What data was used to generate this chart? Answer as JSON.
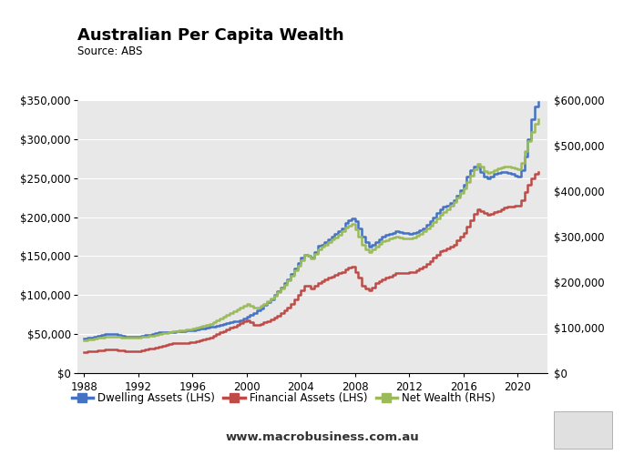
{
  "title": "Australian Per Capita Wealth",
  "source": "Source: ABS",
  "website": "www.macrobusiness.com.au",
  "figure_bg": "#ffffff",
  "plot_bg_color": "#e8e8e8",
  "lhs_ylim": [
    0,
    350000
  ],
  "rhs_ylim": [
    0,
    600000
  ],
  "lhs_yticks": [
    0,
    50000,
    100000,
    150000,
    200000,
    250000,
    300000,
    350000
  ],
  "rhs_yticks": [
    0,
    100000,
    200000,
    300000,
    400000,
    500000,
    600000
  ],
  "xlim": [
    1987.5,
    2022.2
  ],
  "xticks": [
    1988,
    1992,
    1996,
    2000,
    2004,
    2008,
    2012,
    2016,
    2020
  ],
  "dwelling_color": "#4472c4",
  "financial_color": "#be4b48",
  "netwealth_color": "#9bbb59",
  "macro_red": "#cc0000",
  "years": [
    1988.0,
    1988.25,
    1988.5,
    1988.75,
    1989.0,
    1989.25,
    1989.5,
    1989.75,
    1990.0,
    1990.25,
    1990.5,
    1990.75,
    1991.0,
    1991.25,
    1991.5,
    1991.75,
    1992.0,
    1992.25,
    1992.5,
    1992.75,
    1993.0,
    1993.25,
    1993.5,
    1993.75,
    1994.0,
    1994.25,
    1994.5,
    1994.75,
    1995.0,
    1995.25,
    1995.5,
    1995.75,
    1996.0,
    1996.25,
    1996.5,
    1996.75,
    1997.0,
    1997.25,
    1997.5,
    1997.75,
    1998.0,
    1998.25,
    1998.5,
    1998.75,
    1999.0,
    1999.25,
    1999.5,
    1999.75,
    2000.0,
    2000.25,
    2000.5,
    2000.75,
    2001.0,
    2001.25,
    2001.5,
    2001.75,
    2002.0,
    2002.25,
    2002.5,
    2002.75,
    2003.0,
    2003.25,
    2003.5,
    2003.75,
    2004.0,
    2004.25,
    2004.5,
    2004.75,
    2005.0,
    2005.25,
    2005.5,
    2005.75,
    2006.0,
    2006.25,
    2006.5,
    2006.75,
    2007.0,
    2007.25,
    2007.5,
    2007.75,
    2008.0,
    2008.25,
    2008.5,
    2008.75,
    2009.0,
    2009.25,
    2009.5,
    2009.75,
    2010.0,
    2010.25,
    2010.5,
    2010.75,
    2011.0,
    2011.25,
    2011.5,
    2011.75,
    2012.0,
    2012.25,
    2012.5,
    2012.75,
    2013.0,
    2013.25,
    2013.5,
    2013.75,
    2014.0,
    2014.25,
    2014.5,
    2014.75,
    2015.0,
    2015.25,
    2015.5,
    2015.75,
    2016.0,
    2016.25,
    2016.5,
    2016.75,
    2017.0,
    2017.25,
    2017.5,
    2017.75,
    2018.0,
    2018.25,
    2018.5,
    2018.75,
    2019.0,
    2019.25,
    2019.5,
    2019.75,
    2020.0,
    2020.25,
    2020.5,
    2020.75,
    2021.0,
    2021.25,
    2021.5
  ],
  "dwelling_lhs": [
    44000,
    45000,
    46000,
    47000,
    48000,
    49000,
    50000,
    50000,
    50000,
    50000,
    49000,
    48000,
    47000,
    47000,
    47000,
    47000,
    47000,
    48000,
    49000,
    49000,
    50000,
    51000,
    52000,
    52000,
    53000,
    53000,
    53000,
    54000,
    54000,
    54000,
    55000,
    55000,
    55000,
    56000,
    57000,
    57000,
    58000,
    59000,
    60000,
    61000,
    62000,
    63000,
    64000,
    65000,
    66000,
    67000,
    68000,
    70000,
    72000,
    75000,
    77000,
    80000,
    83000,
    87000,
    91000,
    95000,
    100000,
    105000,
    110000,
    115000,
    120000,
    127000,
    134000,
    141000,
    148000,
    152000,
    150000,
    148000,
    155000,
    163000,
    165000,
    168000,
    172000,
    175000,
    178000,
    182000,
    186000,
    192000,
    196000,
    198000,
    195000,
    185000,
    175000,
    168000,
    162000,
    165000,
    168000,
    172000,
    175000,
    177000,
    179000,
    180000,
    182000,
    181000,
    180000,
    180000,
    179000,
    180000,
    181000,
    183000,
    186000,
    190000,
    195000,
    200000,
    205000,
    210000,
    213000,
    215000,
    218000,
    222000,
    228000,
    235000,
    242000,
    252000,
    260000,
    265000,
    265000,
    258000,
    252000,
    250000,
    252000,
    255000,
    257000,
    258000,
    258000,
    257000,
    255000,
    253000,
    252000,
    260000,
    278000,
    300000,
    325000,
    342000,
    348000
  ],
  "financial_lhs": [
    27000,
    27500,
    28000,
    28500,
    29000,
    29500,
    30000,
    30000,
    30500,
    30000,
    29500,
    29000,
    28500,
    28500,
    28500,
    28500,
    28500,
    29000,
    30000,
    31000,
    32000,
    33000,
    34000,
    35000,
    36000,
    37000,
    38000,
    38000,
    38000,
    38500,
    39000,
    39500,
    40000,
    41000,
    42000,
    43000,
    44000,
    46000,
    48000,
    50000,
    52000,
    54000,
    56000,
    58000,
    60000,
    62000,
    64000,
    66000,
    68000,
    65000,
    62000,
    62000,
    63000,
    65000,
    67000,
    69000,
    71000,
    74000,
    77000,
    80000,
    84000,
    89000,
    94000,
    100000,
    106000,
    112000,
    112000,
    108000,
    112000,
    116000,
    118000,
    120000,
    122000,
    124000,
    126000,
    128000,
    130000,
    133000,
    135000,
    136000,
    130000,
    122000,
    112000,
    108000,
    106000,
    110000,
    115000,
    118000,
    120000,
    122000,
    124000,
    126000,
    128000,
    128000,
    128000,
    128000,
    129000,
    130000,
    132000,
    134000,
    137000,
    140000,
    144000,
    148000,
    152000,
    156000,
    158000,
    160000,
    162000,
    165000,
    170000,
    175000,
    180000,
    188000,
    196000,
    204000,
    210000,
    208000,
    205000,
    203000,
    204000,
    206000,
    208000,
    210000,
    212000,
    213000,
    214000,
    215000,
    215000,
    222000,
    232000,
    242000,
    250000,
    255000,
    258000
  ],
  "netwealth_rhs": [
    72000,
    73500,
    75000,
    76500,
    78000,
    79000,
    80000,
    81000,
    81000,
    80000,
    79500,
    79000,
    78500,
    78500,
    78500,
    78500,
    78500,
    79500,
    81000,
    82000,
    83000,
    85000,
    87000,
    88000,
    89000,
    91000,
    92000,
    93000,
    94000,
    95000,
    96000,
    97000,
    98000,
    100000,
    102000,
    104000,
    106000,
    109000,
    113000,
    117000,
    121000,
    125000,
    129000,
    133000,
    137000,
    141000,
    145000,
    149000,
    153000,
    148000,
    144000,
    145000,
    148000,
    153000,
    158000,
    164000,
    170000,
    178000,
    186000,
    195000,
    204000,
    215000,
    226000,
    237000,
    248000,
    260000,
    258000,
    252000,
    262000,
    272000,
    278000,
    283000,
    288000,
    294000,
    299000,
    305000,
    312000,
    320000,
    325000,
    328000,
    316000,
    300000,
    282000,
    272000,
    267000,
    272000,
    278000,
    284000,
    290000,
    293000,
    296000,
    298000,
    300000,
    298000,
    296000,
    296000,
    297000,
    299000,
    302000,
    306000,
    312000,
    318000,
    325000,
    332000,
    340000,
    348000,
    354000,
    360000,
    368000,
    376000,
    386000,
    396000,
    406000,
    420000,
    434000,
    448000,
    460000,
    455000,
    445000,
    440000,
    442000,
    446000,
    450000,
    453000,
    455000,
    455000,
    453000,
    450000,
    448000,
    462000,
    488000,
    510000,
    530000,
    548000,
    558000
  ]
}
